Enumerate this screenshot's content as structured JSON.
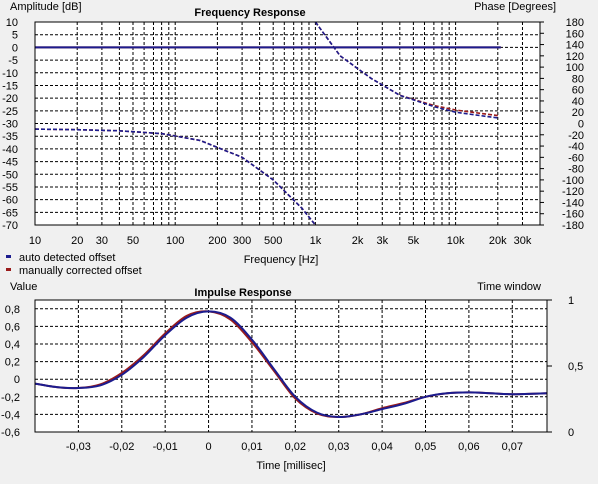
{
  "colors": {
    "background": "#f0f0f0",
    "plot_bg": "#ffffff",
    "grid": "#000000",
    "auto_series": "#1c1c8e",
    "manual_series": "#9a1b1b"
  },
  "chart_data": [
    {
      "type": "line",
      "title": "Frequency Response",
      "ylabel_left": "Amplitude [dB]",
      "ylabel_right": "Phase [Degrees]",
      "xlabel": "Frequency [Hz]",
      "xscale": "log",
      "xlim": [
        10,
        40000
      ],
      "ylim_left": [
        -70,
        10
      ],
      "ylim_right": [
        -180,
        180
      ],
      "left_ticks": [
        "10",
        "5",
        "0",
        "-5",
        "-10",
        "-15",
        "-20",
        "-25",
        "-30",
        "-35",
        "-40",
        "-45",
        "-50",
        "-55",
        "-60",
        "-65",
        "-70"
      ],
      "right_ticks": [
        "180",
        "160",
        "140",
        "120",
        "100",
        "80",
        "60",
        "40",
        "20",
        "0",
        "-20",
        "-40",
        "-60",
        "-80",
        "-100",
        "-120",
        "-140",
        "-160",
        "-180"
      ],
      "x_tick_values": [
        10,
        20,
        30,
        50,
        100,
        200,
        300,
        500,
        1000,
        2000,
        3000,
        5000,
        10000,
        20000,
        30000
      ],
      "x_tick_labels": [
        "10",
        "20",
        "30",
        "50",
        "100",
        "200",
        "300",
        "500",
        "1k",
        "2k",
        "3k",
        "5k",
        "10k",
        "20k",
        "30k"
      ],
      "grid": true,
      "series": [
        {
          "name": "auto detected offset",
          "color": "#1c1c8e",
          "amplitude_db": [
            [
              10,
              0
            ],
            [
              21000,
              0
            ],
            [
              21000,
              -70
            ]
          ],
          "phase_deg": [
            [
              10,
              -10
            ],
            [
              20,
              -11
            ],
            [
              40,
              -13
            ],
            [
              80,
              -18
            ],
            [
              150,
              -30
            ],
            [
              300,
              -60
            ],
            [
              500,
              -100
            ],
            [
              800,
              -150
            ],
            [
              1000,
              -180
            ],
            [
              1000,
              180
            ],
            [
              1500,
              120
            ],
            [
              2500,
              80
            ],
            [
              4000,
              50
            ],
            [
              7000,
              30
            ],
            [
              10000,
              20
            ],
            [
              15000,
              14
            ],
            [
              20000,
              10
            ]
          ]
        },
        {
          "name": "manually corrected offset",
          "color": "#9a1b1b",
          "amplitude_db": [
            [
              10,
              0
            ],
            [
              21000,
              0
            ]
          ],
          "phase_deg": [
            [
              10,
              -10
            ],
            [
              20,
              -11
            ],
            [
              40,
              -13
            ],
            [
              80,
              -18
            ],
            [
              150,
              -30
            ],
            [
              300,
              -60
            ],
            [
              500,
              -100
            ],
            [
              800,
              -150
            ],
            [
              1000,
              -180
            ],
            [
              1000,
              180
            ],
            [
              1500,
              120
            ],
            [
              2500,
              80
            ],
            [
              4000,
              50
            ],
            [
              7000,
              32
            ],
            [
              10000,
              24
            ],
            [
              15000,
              18
            ],
            [
              20000,
              14
            ]
          ]
        }
      ]
    },
    {
      "type": "line",
      "title": "Impulse Response",
      "ylabel_left": "Value",
      "ylabel_right": "Time window",
      "xlabel": "Time [millisec]",
      "xlim": [
        -0.04,
        0.078
      ],
      "ylim_left": [
        -0.6,
        0.9
      ],
      "ylim_right": [
        0,
        1
      ],
      "left_ticks": [
        "0,8",
        "0,6",
        "0,4",
        "0,2",
        "0",
        "-0,2",
        "-0,4",
        "-0,6"
      ],
      "right_ticks": [
        "1",
        "0,5",
        "0"
      ],
      "x_ticks": [
        "-0,03",
        "-0,02",
        "-0,01",
        "0",
        "0,01",
        "0,02",
        "0,03",
        "0,04",
        "0,05",
        "0,06",
        "0,07"
      ],
      "grid": true,
      "series": [
        {
          "name": "auto detected offset",
          "color": "#1c1c8e",
          "points": [
            [
              -0.04,
              -0.05
            ],
            [
              -0.035,
              -0.09
            ],
            [
              -0.03,
              -0.1
            ],
            [
              -0.025,
              -0.07
            ],
            [
              -0.02,
              0.05
            ],
            [
              -0.015,
              0.25
            ],
            [
              -0.01,
              0.5
            ],
            [
              -0.005,
              0.7
            ],
            [
              0,
              0.77
            ],
            [
              0.005,
              0.7
            ],
            [
              0.01,
              0.45
            ],
            [
              0.015,
              0.12
            ],
            [
              0.02,
              -0.2
            ],
            [
              0.025,
              -0.38
            ],
            [
              0.03,
              -0.43
            ],
            [
              0.035,
              -0.4
            ],
            [
              0.04,
              -0.34
            ],
            [
              0.045,
              -0.28
            ],
            [
              0.05,
              -0.2
            ],
            [
              0.055,
              -0.16
            ],
            [
              0.06,
              -0.15
            ],
            [
              0.065,
              -0.16
            ],
            [
              0.07,
              -0.17
            ],
            [
              0.078,
              -0.16
            ]
          ]
        },
        {
          "name": "manually corrected offset",
          "color": "#9a1b1b",
          "points": [
            [
              -0.04,
              -0.05
            ],
            [
              -0.035,
              -0.09
            ],
            [
              -0.03,
              -0.1
            ],
            [
              -0.025,
              -0.06
            ],
            [
              -0.02,
              0.07
            ],
            [
              -0.015,
              0.27
            ],
            [
              -0.01,
              0.52
            ],
            [
              -0.005,
              0.72
            ],
            [
              0,
              0.77
            ],
            [
              0.005,
              0.68
            ],
            [
              0.01,
              0.42
            ],
            [
              0.015,
              0.1
            ],
            [
              0.02,
              -0.22
            ],
            [
              0.025,
              -0.39
            ],
            [
              0.03,
              -0.43
            ],
            [
              0.035,
              -0.4
            ],
            [
              0.04,
              -0.33
            ],
            [
              0.045,
              -0.27
            ],
            [
              0.05,
              -0.2
            ],
            [
              0.055,
              -0.16
            ],
            [
              0.06,
              -0.15
            ],
            [
              0.065,
              -0.16
            ],
            [
              0.07,
              -0.17
            ],
            [
              0.078,
              -0.16
            ]
          ]
        }
      ]
    }
  ]
}
